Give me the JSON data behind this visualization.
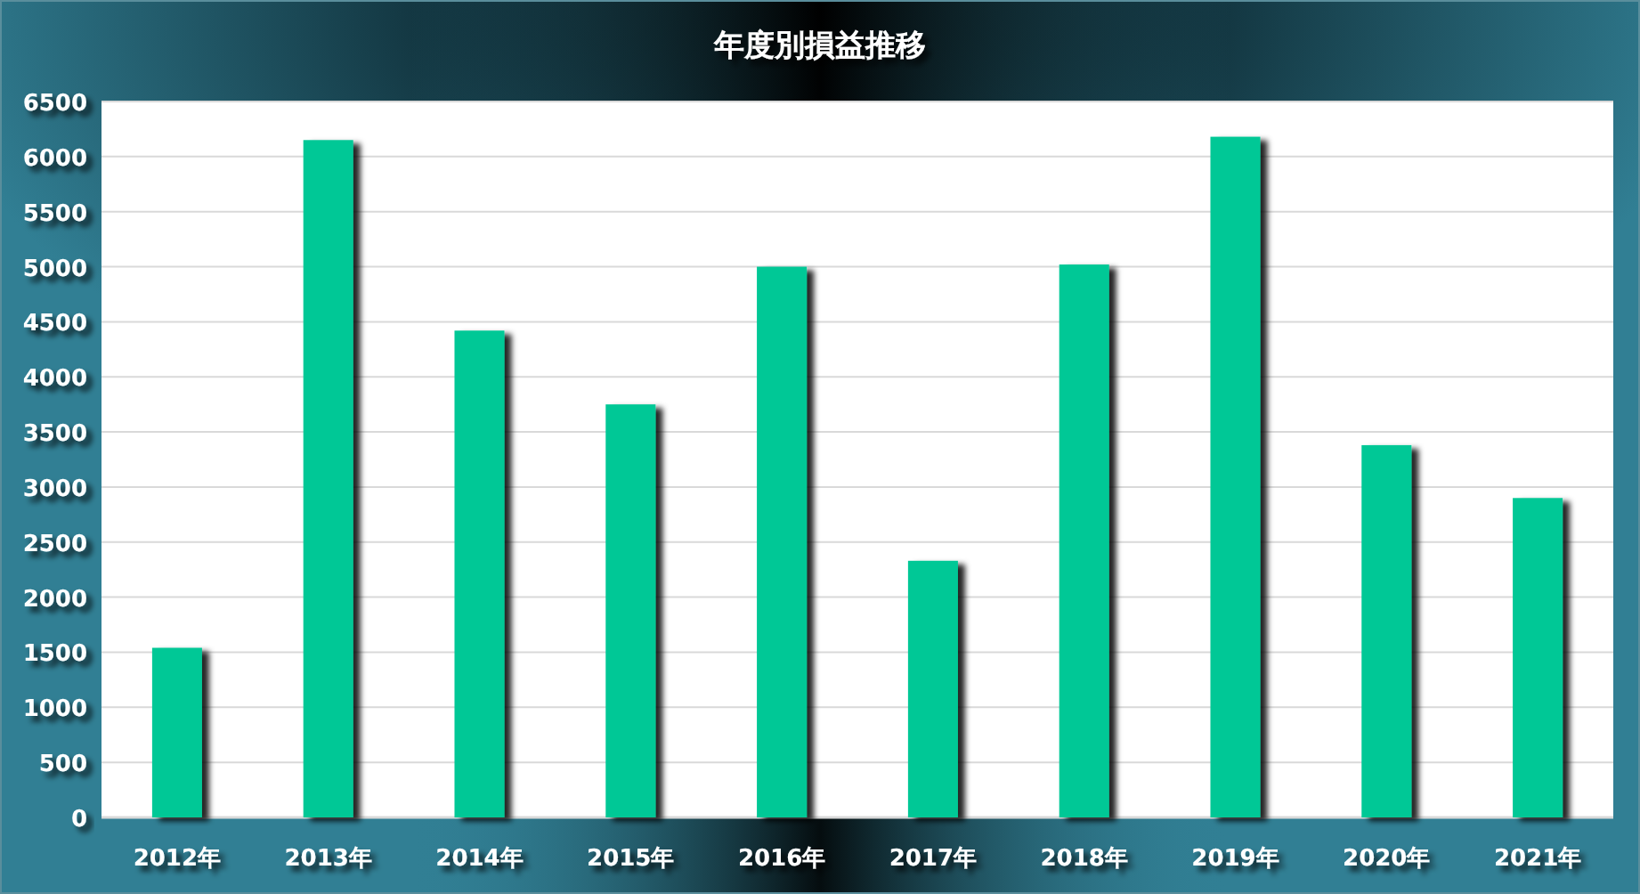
{
  "chart_data": {
    "type": "bar",
    "title": "年度別損益推移",
    "categories": [
      "2012年",
      "2013年",
      "2014年",
      "2015年",
      "2016年",
      "2017年",
      "2018年",
      "2019年",
      "2020年",
      "2021年"
    ],
    "values": [
      1540,
      6150,
      4420,
      3750,
      5000,
      2330,
      5020,
      6180,
      3380,
      2900
    ],
    "color": "#00c896",
    "ylim": [
      0,
      6500
    ],
    "yticks": [
      0,
      500,
      1000,
      1500,
      2000,
      2500,
      3000,
      3500,
      4000,
      4500,
      5000,
      5500,
      6000,
      6500
    ],
    "grid": "y"
  }
}
